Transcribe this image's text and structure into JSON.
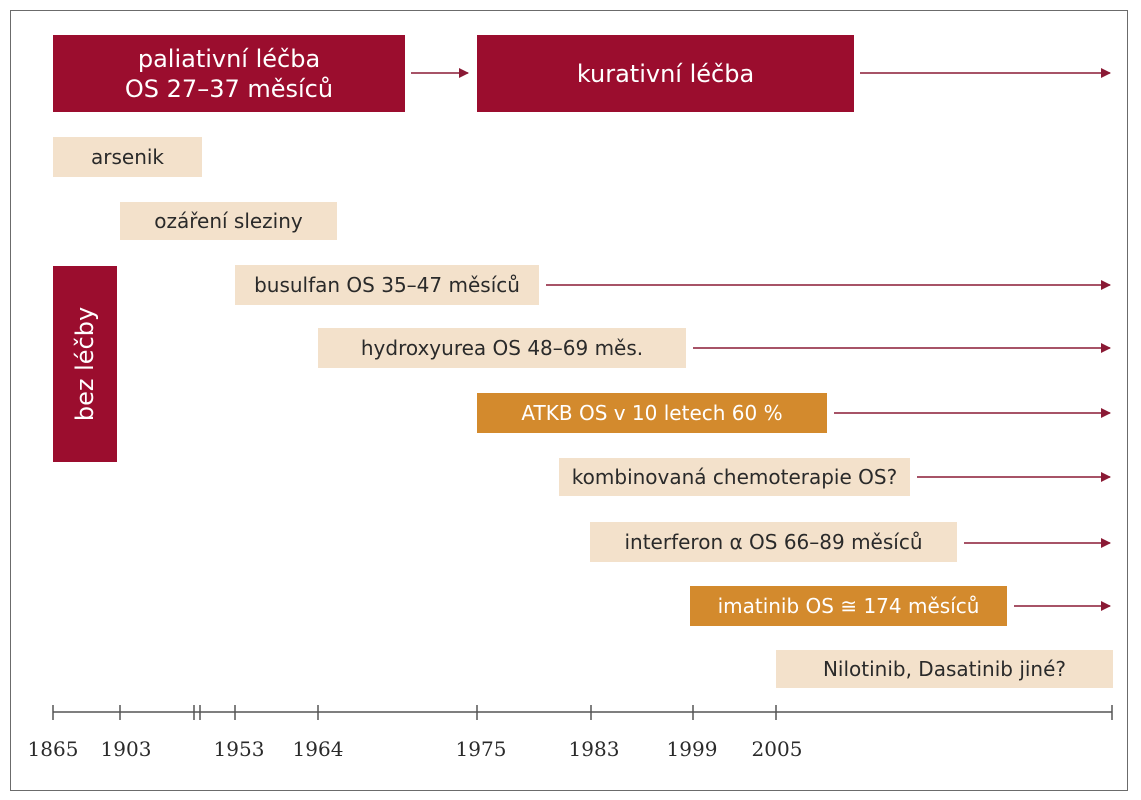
{
  "header": {
    "palliative_line1": "paliativní léčba",
    "palliative_line2": "OS 27–37 měsíců",
    "curative": "kurativní léčba"
  },
  "side_label": "bez léčby",
  "treatments": [
    {
      "label": "arsenik",
      "style": "beige"
    },
    {
      "label": "ozáření sleziny",
      "style": "beige"
    },
    {
      "label": "busulfan OS 35–47 měsíců",
      "style": "beige"
    },
    {
      "label": "hydroxyurea OS 48–69 měs.",
      "style": "beige"
    },
    {
      "label": "ATKB OS v 10 letech 60 %",
      "style": "orange"
    },
    {
      "label": "kombinovaná chemoterapie OS?",
      "style": "beige"
    },
    {
      "label": "interferon α OS 66–89 měsíců",
      "style": "beige"
    },
    {
      "label": "imatinib OS ≅ 174 měsíců",
      "style": "orange"
    },
    {
      "label": "Nilotinib, Dasatinib jiné?",
      "style": "beige"
    }
  ],
  "timeline": {
    "ticks": [
      "1865",
      "1903",
      "1953",
      "1964",
      "1975",
      "1983",
      "1999",
      "2005"
    ]
  },
  "colors": {
    "dark_red": "#9b0d2e",
    "beige": "#f3e1cb",
    "orange": "#d38a2d",
    "arrow": "#8a1a35",
    "axis": "#555555"
  }
}
